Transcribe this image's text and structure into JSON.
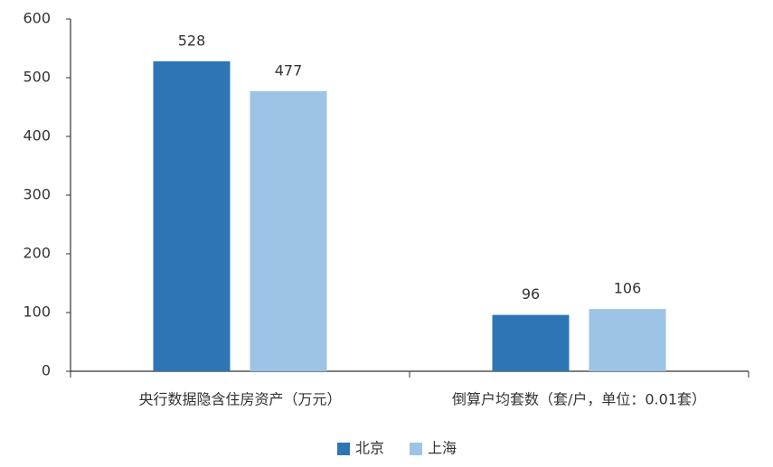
{
  "chart_data": {
    "type": "bar",
    "categories": [
      "央行数据隐含住房资产（万元）",
      "倒算户均套数（套/户，单位：0.01套）"
    ],
    "series": [
      {
        "name": "北京",
        "color": "#2e75b6",
        "values": [
          528,
          96
        ]
      },
      {
        "name": "上海",
        "color": "#9dc3e6",
        "values": [
          477,
          106
        ]
      }
    ],
    "ylim": [
      0,
      600
    ],
    "yticks": [
      0,
      100,
      200,
      300,
      400,
      500,
      600
    ],
    "grid": false,
    "legend": "bottom"
  }
}
